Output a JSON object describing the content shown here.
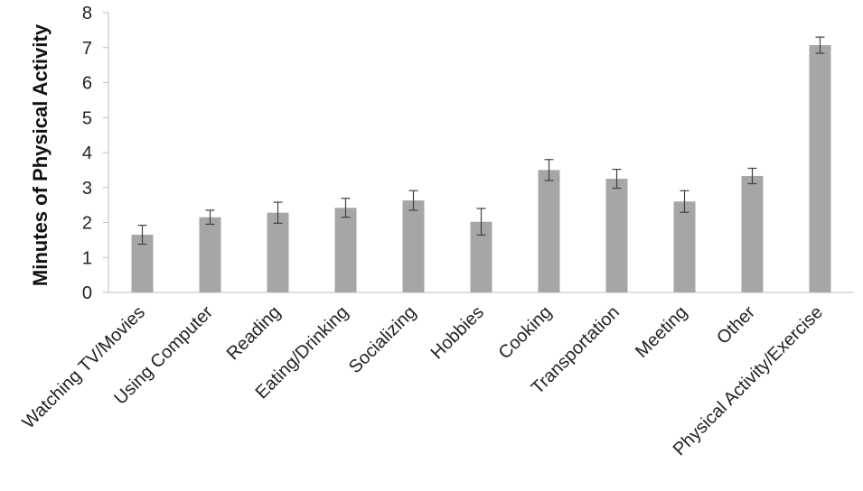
{
  "chart_data": {
    "type": "bar",
    "title": "",
    "xlabel": "",
    "ylabel": "Minutes of Physical Activity",
    "ylim": [
      0,
      8
    ],
    "yticks": [
      0,
      1,
      2,
      3,
      4,
      5,
      6,
      7,
      8
    ],
    "grid": false,
    "legend": "none",
    "categories": [
      "Watching TV/Movies",
      "Using Computer",
      "Reading",
      "Eating/Drinking",
      "Socializing",
      "Hobbies",
      "Cooking",
      "Transportation",
      "Meeting",
      "Other",
      "Physical Activity/Exercise"
    ],
    "values": [
      1.65,
      2.15,
      2.28,
      2.42,
      2.63,
      2.02,
      3.5,
      3.25,
      2.6,
      3.33,
      7.07
    ],
    "error": [
      0.27,
      0.2,
      0.3,
      0.27,
      0.28,
      0.38,
      0.3,
      0.27,
      0.31,
      0.22,
      0.23
    ],
    "colors": {
      "bar": "#a6a6a6",
      "axis": "#bfbfbf",
      "error_bar": "#404040"
    }
  }
}
